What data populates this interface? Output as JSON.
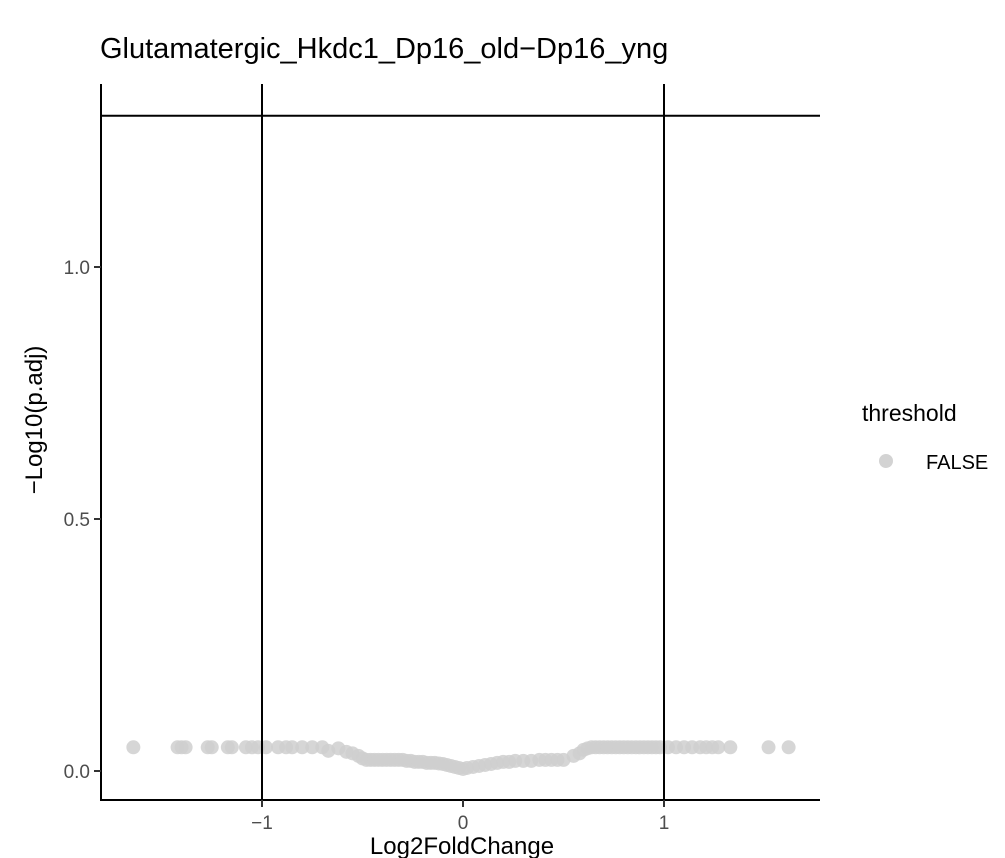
{
  "chart_data": {
    "type": "scatter",
    "title": "Glutamatergic_Hkdc1_Dp16_old−Dp16_yng",
    "xlabel": "Log2FoldChange",
    "ylabel": "−Log10(p.adj)",
    "xlim": [
      -1.8,
      1.78
    ],
    "ylim": [
      -0.05,
      1.35
    ],
    "x_ticks": [
      -1,
      0,
      1
    ],
    "x_tick_labels": [
      "−1",
      "0",
      "1"
    ],
    "y_ticks": [
      0.0,
      0.5,
      1.0
    ],
    "y_tick_labels": [
      "0.0",
      "0.5",
      "1.0"
    ],
    "grid": false,
    "reference_lines": {
      "vertical": [
        -1,
        1
      ],
      "horizontal": [
        1.3
      ]
    },
    "legend": {
      "title": "threshold",
      "placement": "right",
      "entries": [
        {
          "label": "FALSE",
          "color": "#d3d3d3"
        }
      ]
    },
    "series": [
      {
        "name": "FALSE",
        "color": "#cfcfcf",
        "points": [
          [
            -1.64,
            0.047
          ],
          [
            -1.42,
            0.047
          ],
          [
            -1.4,
            0.047
          ],
          [
            -1.38,
            0.047
          ],
          [
            -1.27,
            0.047
          ],
          [
            -1.25,
            0.047
          ],
          [
            -1.17,
            0.047
          ],
          [
            -1.15,
            0.047
          ],
          [
            -1.08,
            0.047
          ],
          [
            -1.05,
            0.047
          ],
          [
            -1.02,
            0.047
          ],
          [
            -0.98,
            0.047
          ],
          [
            -0.92,
            0.047
          ],
          [
            -0.88,
            0.047
          ],
          [
            -0.85,
            0.047
          ],
          [
            -0.8,
            0.047
          ],
          [
            -0.75,
            0.047
          ],
          [
            -0.7,
            0.047
          ],
          [
            -0.67,
            0.04
          ],
          [
            -0.62,
            0.045
          ],
          [
            -0.58,
            0.038
          ],
          [
            -0.55,
            0.035
          ],
          [
            -0.52,
            0.03
          ],
          [
            -0.5,
            0.025
          ],
          [
            -0.48,
            0.022
          ],
          [
            -0.46,
            0.022
          ],
          [
            -0.44,
            0.022
          ],
          [
            -0.42,
            0.022
          ],
          [
            -0.4,
            0.022
          ],
          [
            -0.38,
            0.022
          ],
          [
            -0.36,
            0.022
          ],
          [
            -0.34,
            0.022
          ],
          [
            -0.32,
            0.022
          ],
          [
            -0.3,
            0.022
          ],
          [
            -0.28,
            0.02
          ],
          [
            -0.26,
            0.02
          ],
          [
            -0.24,
            0.018
          ],
          [
            -0.22,
            0.018
          ],
          [
            -0.2,
            0.018
          ],
          [
            -0.18,
            0.016
          ],
          [
            -0.16,
            0.016
          ],
          [
            -0.14,
            0.016
          ],
          [
            -0.12,
            0.015
          ],
          [
            -0.1,
            0.014
          ],
          [
            -0.08,
            0.012
          ],
          [
            -0.06,
            0.01
          ],
          [
            -0.04,
            0.008
          ],
          [
            -0.02,
            0.006
          ],
          [
            0.0,
            0.004
          ],
          [
            0.02,
            0.006
          ],
          [
            0.05,
            0.008
          ],
          [
            0.08,
            0.01
          ],
          [
            0.11,
            0.012
          ],
          [
            0.14,
            0.014
          ],
          [
            0.17,
            0.016
          ],
          [
            0.2,
            0.018
          ],
          [
            0.23,
            0.018
          ],
          [
            0.26,
            0.02
          ],
          [
            0.3,
            0.02
          ],
          [
            0.34,
            0.02
          ],
          [
            0.38,
            0.022
          ],
          [
            0.41,
            0.022
          ],
          [
            0.44,
            0.022
          ],
          [
            0.47,
            0.022
          ],
          [
            0.5,
            0.022
          ],
          [
            0.55,
            0.03
          ],
          [
            0.58,
            0.035
          ],
          [
            0.6,
            0.042
          ],
          [
            0.62,
            0.045
          ],
          [
            0.64,
            0.047
          ],
          [
            0.66,
            0.047
          ],
          [
            0.68,
            0.047
          ],
          [
            0.7,
            0.047
          ],
          [
            0.72,
            0.047
          ],
          [
            0.74,
            0.047
          ],
          [
            0.76,
            0.047
          ],
          [
            0.78,
            0.047
          ],
          [
            0.8,
            0.047
          ],
          [
            0.82,
            0.047
          ],
          [
            0.84,
            0.047
          ],
          [
            0.86,
            0.047
          ],
          [
            0.88,
            0.047
          ],
          [
            0.9,
            0.047
          ],
          [
            0.92,
            0.047
          ],
          [
            0.94,
            0.047
          ],
          [
            0.96,
            0.047
          ],
          [
            0.98,
            0.047
          ],
          [
            1.02,
            0.047
          ],
          [
            1.06,
            0.047
          ],
          [
            1.1,
            0.047
          ],
          [
            1.14,
            0.047
          ],
          [
            1.18,
            0.047
          ],
          [
            1.21,
            0.047
          ],
          [
            1.24,
            0.047
          ],
          [
            1.27,
            0.047
          ],
          [
            1.33,
            0.047
          ],
          [
            1.52,
            0.047
          ],
          [
            1.62,
            0.047
          ]
        ]
      }
    ]
  }
}
